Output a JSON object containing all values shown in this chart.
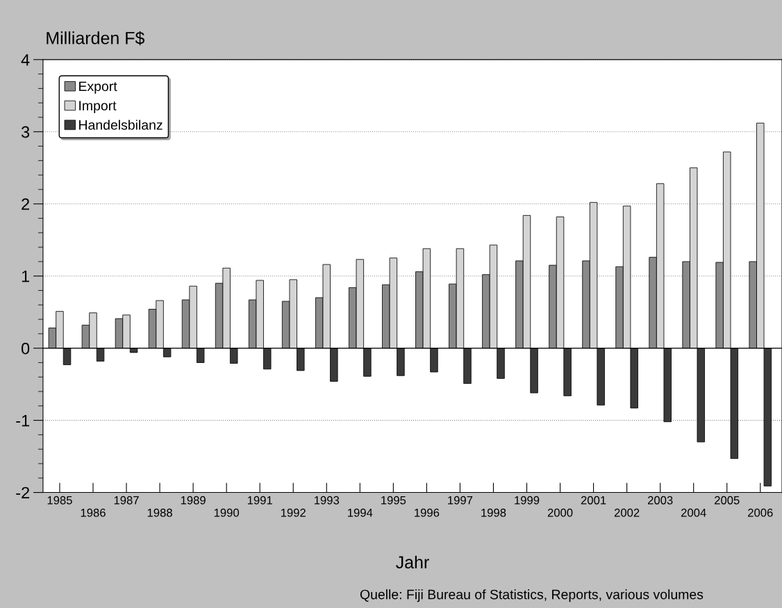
{
  "chart_data": {
    "type": "bar",
    "ylabel": "Milliarden F$",
    "xlabel": "Jahr",
    "categories": [
      "1985",
      "1986",
      "1987",
      "1988",
      "1989",
      "1990",
      "1991",
      "1992",
      "1993",
      "1994",
      "1995",
      "1996",
      "1997",
      "1998",
      "1999",
      "2000",
      "2001",
      "2002",
      "2003",
      "2004",
      "2005",
      "2006"
    ],
    "series": [
      {
        "name": "Export",
        "color": "#8a8a8a",
        "values": [
          0.28,
          0.32,
          0.41,
          0.54,
          0.67,
          0.9,
          0.67,
          0.65,
          0.7,
          0.84,
          0.88,
          1.06,
          0.89,
          1.02,
          1.21,
          1.15,
          1.21,
          1.13,
          1.26,
          1.2,
          1.19,
          1.2
        ]
      },
      {
        "name": "Import",
        "color": "#d4d4d4",
        "values": [
          0.51,
          0.49,
          0.46,
          0.66,
          0.86,
          1.11,
          0.94,
          0.95,
          1.16,
          1.23,
          1.25,
          1.38,
          1.38,
          1.43,
          1.84,
          1.82,
          2.02,
          1.97,
          2.28,
          2.5,
          2.72,
          3.12
        ]
      },
      {
        "name": "Handelsbilanz",
        "color": "#3a3a3a",
        "values": [
          -0.23,
          -0.18,
          -0.06,
          -0.12,
          -0.2,
          -0.21,
          -0.29,
          -0.31,
          -0.46,
          -0.39,
          -0.38,
          -0.33,
          -0.49,
          -0.42,
          -0.62,
          -0.66,
          -0.79,
          -0.83,
          -1.02,
          -1.3,
          -1.53,
          -1.91
        ]
      }
    ],
    "ylim": [
      -2,
      4
    ],
    "yticks": [
      -2,
      -1,
      0,
      1,
      2,
      3,
      4
    ],
    "grid": "y",
    "legend": "top left",
    "annotations": [
      "Quelle: Fiji Bureau of Statistics, Reports, various volumes"
    ]
  }
}
